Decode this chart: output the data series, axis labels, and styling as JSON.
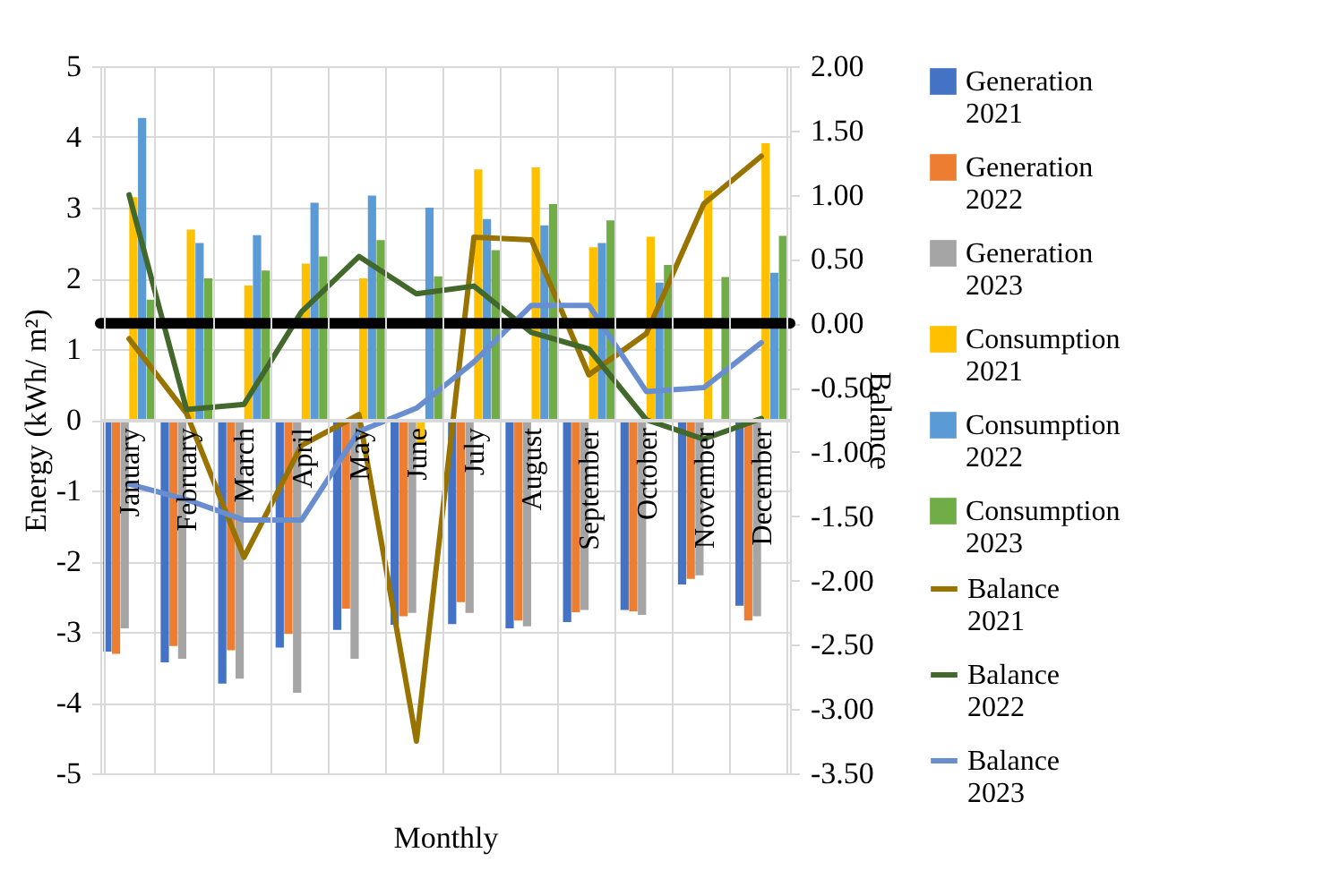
{
  "chart_data": {
    "type": "bar",
    "xlabel": "Monthly",
    "ylabel": "Energy  (kWh/ m²)",
    "y2label": "Balance",
    "categories": [
      "January",
      "February",
      "March",
      "April",
      "May",
      "June",
      "July",
      "August",
      "September",
      "October",
      "November",
      "December"
    ],
    "series": [
      {
        "name": "Generation 2021",
        "color": "#4472c4",
        "values": [
          -3.28,
          -3.43,
          -3.73,
          -3.22,
          -2.97,
          -2.9,
          -2.89,
          -2.95,
          -2.86,
          -2.69,
          -2.33,
          -2.63
        ]
      },
      {
        "name": "Generation 2022",
        "color": "#ed7d31",
        "values": [
          -3.31,
          -3.2,
          -3.26,
          -3.03,
          -2.67,
          -2.78,
          -2.58,
          -2.84,
          -2.72,
          -2.71,
          -2.25,
          -2.84
        ]
      },
      {
        "name": "Generation 2023",
        "color": "#a5a5a5",
        "values": [
          -2.95,
          -3.38,
          -3.66,
          -3.86,
          -3.38,
          -2.73,
          -2.73,
          -2.92,
          -2.69,
          -2.76,
          -2.2,
          -2.78
        ]
      },
      {
        "name": "Consumption 2021",
        "color": "#ffc000",
        "values": [
          3.15,
          2.69,
          1.9,
          2.21,
          2.0,
          -0.33,
          3.54,
          3.57,
          2.44,
          2.59,
          3.24,
          3.91
        ]
      },
      {
        "name": "Consumption 2022",
        "color": "#5b9bd5",
        "values": [
          4.27,
          2.5,
          2.61,
          3.07,
          3.17,
          3.0,
          2.84,
          2.75,
          2.5,
          1.94,
          null,
          2.08
        ]
      },
      {
        "name": "Consumption 2023",
        "color": "#70ad47",
        "values": [
          1.7,
          2.0,
          2.11,
          2.31,
          2.54,
          2.03,
          2.4,
          3.05,
          2.82,
          2.19,
          2.02,
          2.6
        ]
      },
      {
        "name": "Balance 2021",
        "type": "line",
        "axis": "y2",
        "color": "#997300",
        "values": [
          -0.12,
          -0.7,
          -1.82,
          -0.95,
          -0.71,
          -3.25,
          0.67,
          0.65,
          -0.4,
          -0.08,
          0.93,
          1.3
        ]
      },
      {
        "name": "Balance 2022",
        "type": "line",
        "axis": "y2",
        "color": "#43682b",
        "values": [
          1.0,
          -0.67,
          -0.63,
          0.09,
          0.52,
          0.23,
          0.29,
          -0.07,
          -0.2,
          -0.75,
          -0.9,
          -0.74
        ]
      },
      {
        "name": "Balance 2023",
        "type": "line",
        "axis": "y2",
        "color": "#698ed0",
        "values": [
          -1.25,
          -1.37,
          -1.53,
          -1.53,
          -0.84,
          -0.66,
          -0.3,
          0.14,
          0.14,
          -0.53,
          -0.5,
          -0.15
        ]
      }
    ],
    "ylim": [
      -5,
      5
    ],
    "yticks": [
      -5,
      -4,
      -3,
      -2,
      -1,
      0,
      1,
      2,
      3,
      4,
      5
    ],
    "y2lim": [
      -3.5,
      2
    ],
    "y2ticks": [
      {
        "value": -3.5,
        "label": "-3.50"
      },
      {
        "value": -3,
        "label": "-3.00"
      },
      {
        "value": -2.5,
        "label": "-2.50"
      },
      {
        "value": -2,
        "label": "-2.00"
      },
      {
        "value": -1.5,
        "label": "-1.50"
      },
      {
        "value": -1,
        "label": "-1.00"
      },
      {
        "value": -0.5,
        "label": "-0.50"
      },
      {
        "value": 0,
        "label": "0.00"
      },
      {
        "value": 0.5,
        "label": "0.50"
      },
      {
        "value": 1,
        "label": "1.00"
      },
      {
        "value": 1.5,
        "label": "1.50"
      },
      {
        "value": 2,
        "label": "2.00"
      }
    ],
    "ref_lines": [
      {
        "axis": "y2",
        "value": 0,
        "color": "#000000"
      }
    ],
    "grid": true,
    "legend": "right"
  }
}
